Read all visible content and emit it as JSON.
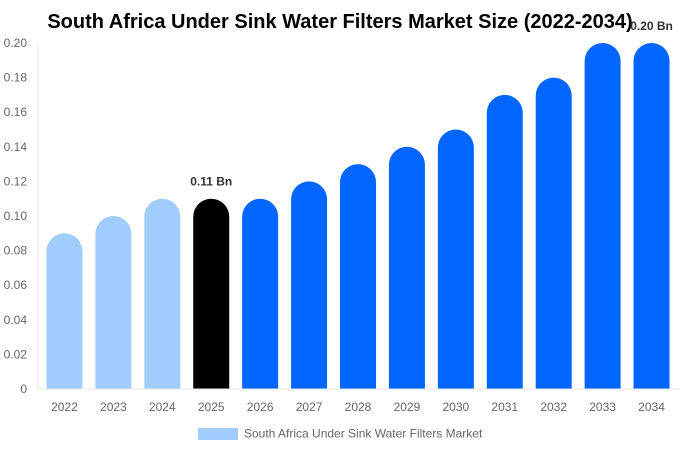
{
  "chart_data": {
    "type": "bar",
    "title": "South Africa Under Sink Water Filters Market Size (2022-2034)",
    "categories": [
      "2022",
      "2023",
      "2024",
      "2025",
      "2026",
      "2027",
      "2028",
      "2029",
      "2030",
      "2031",
      "2032",
      "2033",
      "2034"
    ],
    "series": [
      {
        "name": "South Africa Under Sink Water Filters Market",
        "values": [
          0.09,
          0.1,
          0.11,
          0.11,
          0.11,
          0.12,
          0.13,
          0.14,
          0.15,
          0.17,
          0.18,
          0.2,
          0.2
        ]
      }
    ],
    "ylim": [
      0,
      0.2
    ],
    "yticks": [
      "0",
      "0.02",
      "0.04",
      "0.06",
      "0.08",
      "0.10",
      "0.12",
      "0.14",
      "0.16",
      "0.18",
      "0.20"
    ],
    "data_labels": [
      {
        "category": "2025",
        "text": "0.11 Bn"
      },
      {
        "category": "2034",
        "text": "0.20 Bn"
      }
    ],
    "bar_colors": {
      "historical": "#a0cdfd",
      "base_year": "#000000",
      "forecast": "#0066ff"
    },
    "historical_years": [
      "2022",
      "2023",
      "2024"
    ],
    "base_year": "2025",
    "legend_position": "bottom",
    "grid": false
  }
}
